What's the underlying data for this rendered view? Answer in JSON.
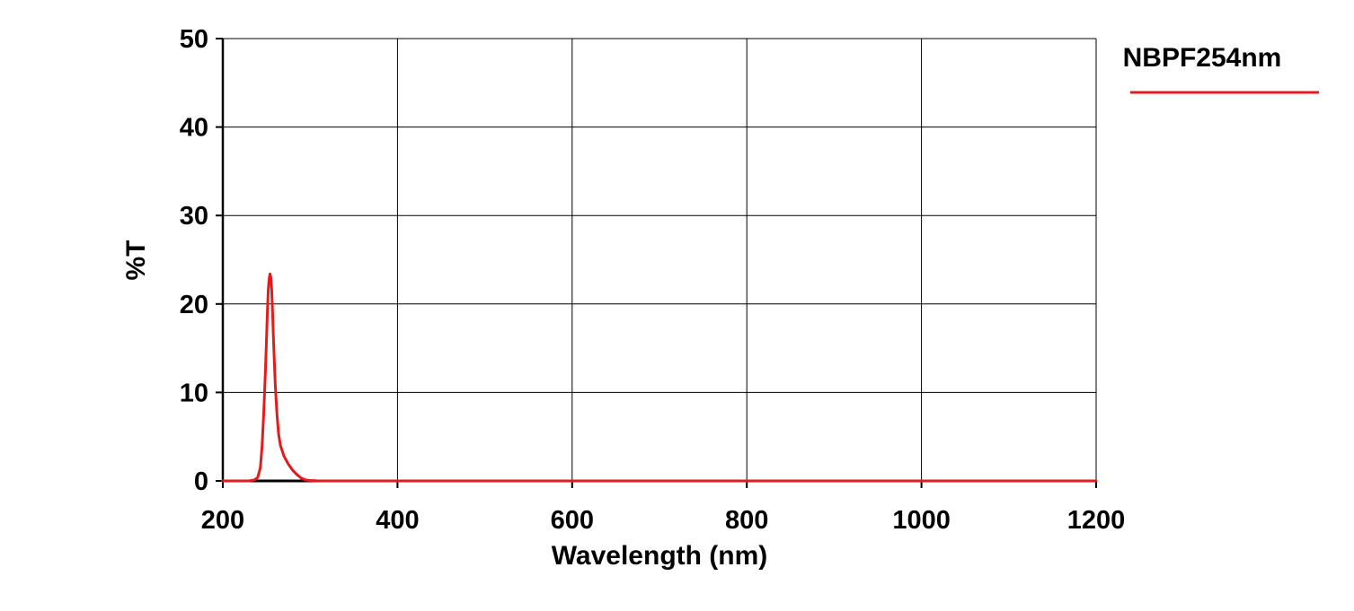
{
  "chart_data": {
    "type": "line",
    "xlabel": "Wavelength (nm)",
    "ylabel": "%T",
    "xlim": [
      200,
      1200
    ],
    "ylim": [
      0,
      50
    ],
    "x_ticks": [
      "200",
      "400",
      "600",
      "800",
      "1000",
      "1200"
    ],
    "y_ticks": [
      "0",
      "10",
      "20",
      "30",
      "40",
      "50"
    ],
    "grid": true,
    "legend_position": "top-right",
    "series": [
      {
        "name": "NBPF254nm",
        "color": "#e41b1b",
        "x": [
          200,
          230,
          236,
          240,
          243,
          245,
          247,
          249,
          250,
          251,
          252,
          253,
          254,
          255,
          256,
          257,
          258,
          260,
          262,
          264,
          266,
          270,
          275,
          280,
          285,
          290,
          295,
          300,
          310,
          350,
          400,
          500,
          600,
          800,
          1000,
          1200
        ],
        "y": [
          0,
          0,
          0.1,
          0.4,
          1.5,
          4,
          8,
          13,
          16,
          19,
          21.5,
          22.8,
          23.4,
          23,
          21.5,
          19,
          16,
          11,
          7.5,
          5.2,
          4,
          2.8,
          1.9,
          1.2,
          0.7,
          0.3,
          0.1,
          0.05,
          0,
          0,
          0,
          0,
          0,
          0,
          0,
          0
        ]
      }
    ]
  }
}
